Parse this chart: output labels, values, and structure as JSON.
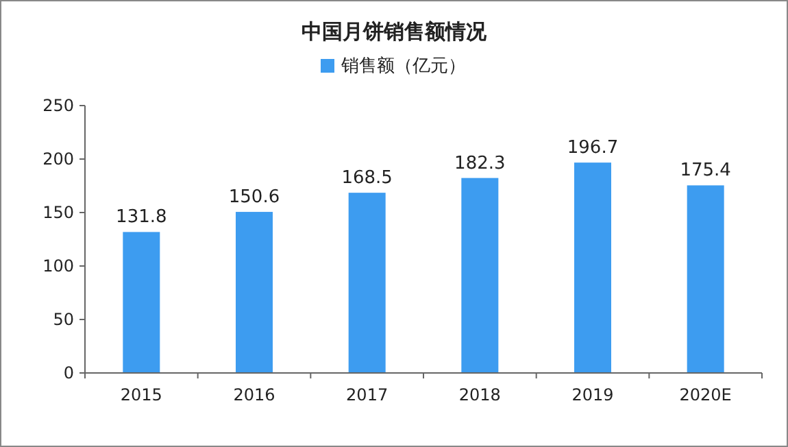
{
  "chart_data": {
    "type": "bar",
    "title": "中国月饼销售额情况",
    "categories": [
      "2015",
      "2016",
      "2017",
      "2018",
      "2019",
      "2020E"
    ],
    "series": [
      {
        "name": "销售额（亿元）",
        "color": "#3d9cf0",
        "values": [
          131.8,
          150.6,
          168.5,
          182.3,
          196.7,
          175.4
        ]
      }
    ],
    "ylim": [
      0,
      250
    ],
    "yticks": [
      0,
      50,
      100,
      150,
      200,
      250
    ],
    "data_labels": true,
    "legend": "top"
  }
}
